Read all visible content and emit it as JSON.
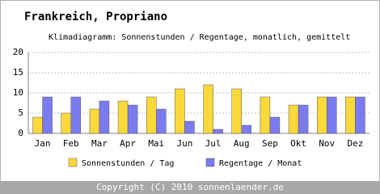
{
  "chart_data": {
    "type": "bar",
    "title": "Frankreich, Propriano",
    "subtitle": "Klimadiagramm: Sonnenstunden / Regentage, monatlich, gemittelt",
    "categories": [
      "Jan",
      "Feb",
      "Mar",
      "Apr",
      "Mai",
      "Jun",
      "Jul",
      "Aug",
      "Sep",
      "Okt",
      "Nov",
      "Dez"
    ],
    "series": [
      {
        "name": "Sonnenstunden / Tag",
        "color": "#fcd93a",
        "values": [
          4,
          5,
          6,
          8,
          9,
          11,
          12,
          11,
          9,
          7,
          9,
          9
        ]
      },
      {
        "name": "Regentage / Monat",
        "color": "#7b7bf0",
        "values": [
          9,
          9,
          8,
          7,
          6,
          3,
          1,
          2,
          4,
          7,
          9,
          9
        ]
      }
    ],
    "ylim": [
      0,
      20
    ],
    "yticks": [
      0,
      5,
      10,
      15,
      20
    ],
    "grid": true,
    "footer": "Copyright (C) 2010 sonnenlaender.de"
  }
}
